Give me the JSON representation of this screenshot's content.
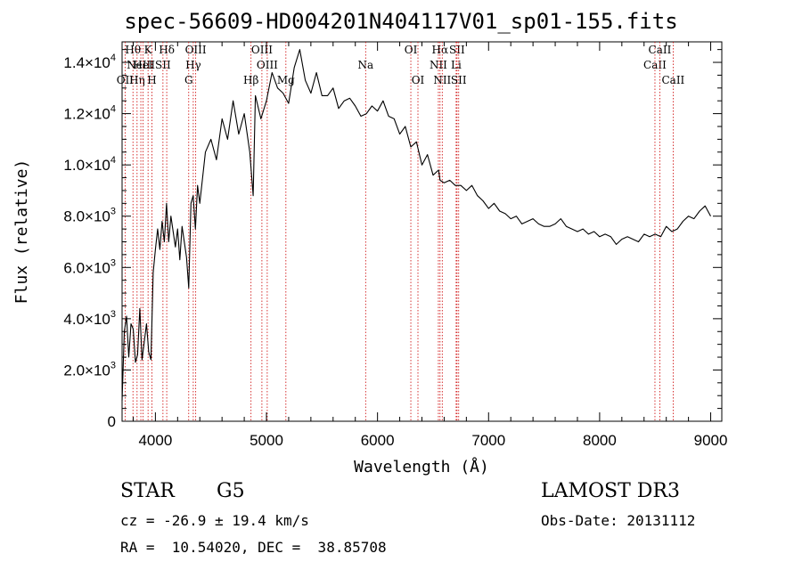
{
  "page": {
    "title": "spec-56609-HD004201N404117V01_sp01-155.fits",
    "object_class": "STAR",
    "subclass": "G5",
    "survey": "LAMOST DR3",
    "cz": "cz = -26.9 ± 19.4 km/s",
    "obs_date": "Obs-Date: 20131112",
    "radec": "RA =  10.54020, DEC =  38.85708"
  },
  "colors": {
    "line": "#000000",
    "marker": "#cc0000"
  },
  "chart_data": {
    "type": "line",
    "title": "spec-56609-HD004201N404117V01_sp01-155.fits",
    "xlabel": "Wavelength (Å)",
    "ylabel": "Flux (relative)",
    "xlim": [
      3700,
      9100
    ],
    "ylim": [
      0,
      14800
    ],
    "x_ticks": [
      4000,
      5000,
      6000,
      7000,
      8000,
      9000
    ],
    "x_tick_labels": [
      "4000",
      "5000",
      "6000",
      "7000",
      "8000",
      "9000"
    ],
    "y_ticks": [
      0,
      2000,
      4000,
      6000,
      8000,
      10000,
      12000,
      14000
    ],
    "y_tick_labels": [
      {
        "mant": "0",
        "exp": ""
      },
      {
        "mant": "2.0×10",
        "exp": "3"
      },
      {
        "mant": "4.0×10",
        "exp": "3"
      },
      {
        "mant": "6.0×10",
        "exp": "3"
      },
      {
        "mant": "8.0×10",
        "exp": "3"
      },
      {
        "mant": "1.0×10",
        "exp": "4"
      },
      {
        "mant": "1.2×10",
        "exp": "4"
      },
      {
        "mant": "1.4×10",
        "exp": "4"
      }
    ],
    "series": [
      {
        "name": "spectrum",
        "x": [
          3700,
          3720,
          3740,
          3760,
          3780,
          3800,
          3820,
          3840,
          3860,
          3880,
          3900,
          3920,
          3940,
          3960,
          3980,
          4000,
          4020,
          4040,
          4060,
          4080,
          4100,
          4120,
          4140,
          4160,
          4180,
          4200,
          4220,
          4240,
          4260,
          4280,
          4300,
          4320,
          4340,
          4360,
          4380,
          4400,
          4450,
          4500,
          4550,
          4600,
          4650,
          4700,
          4750,
          4800,
          4850,
          4880,
          4900,
          4950,
          5000,
          5050,
          5100,
          5150,
          5200,
          5250,
          5300,
          5350,
          5400,
          5450,
          5500,
          5550,
          5600,
          5650,
          5700,
          5750,
          5800,
          5850,
          5900,
          5950,
          6000,
          6050,
          6100,
          6150,
          6200,
          6250,
          6300,
          6350,
          6400,
          6450,
          6500,
          6550,
          6563,
          6600,
          6650,
          6700,
          6750,
          6800,
          6850,
          6900,
          6950,
          7000,
          7050,
          7100,
          7150,
          7200,
          7250,
          7300,
          7350,
          7400,
          7450,
          7500,
          7550,
          7600,
          7650,
          7700,
          7750,
          7800,
          7850,
          7900,
          7950,
          8000,
          8050,
          8100,
          8150,
          8200,
          8250,
          8300,
          8350,
          8400,
          8450,
          8500,
          8550,
          8600,
          8650,
          8700,
          8750,
          8800,
          8850,
          8900,
          8950,
          9000
        ],
        "y": [
          800,
          3500,
          4100,
          2500,
          3800,
          3600,
          2300,
          2600,
          4400,
          2400,
          3100,
          3800,
          2700,
          2400,
          5800,
          6700,
          7500,
          6700,
          7800,
          7000,
          8500,
          7000,
          8000,
          7400,
          6800,
          7500,
          6300,
          7600,
          7000,
          6400,
          5200,
          8500,
          8800,
          7500,
          9200,
          8500,
          10500,
          11000,
          10200,
          11800,
          11000,
          12500,
          11200,
          12000,
          10500,
          8800,
          12700,
          11800,
          12500,
          13600,
          13000,
          12800,
          12400,
          13800,
          14500,
          13300,
          12800,
          13600,
          12700,
          12700,
          13000,
          12200,
          12500,
          12600,
          12300,
          11900,
          12000,
          12300,
          12100,
          12500,
          11900,
          11800,
          11200,
          11500,
          10700,
          10900,
          10000,
          10400,
          9600,
          9800,
          9400,
          9300,
          9400,
          9200,
          9200,
          9000,
          9200,
          8800,
          8600,
          8300,
          8500,
          8200,
          8100,
          7900,
          8000,
          7700,
          7800,
          7900,
          7700,
          7600,
          7600,
          7700,
          7900,
          7600,
          7500,
          7400,
          7500,
          7300,
          7400,
          7200,
          7300,
          7200,
          6900,
          7100,
          7200,
          7100,
          7000,
          7300,
          7200,
          7300,
          7200,
          7600,
          7400,
          7500,
          7800,
          8000,
          7900,
          8200,
          8400,
          8000
        ]
      }
    ],
    "lines": [
      {
        "wave": 3727,
        "label": "OII",
        "row": 2
      },
      {
        "wave": 3798,
        "label": "Hθ",
        "row": 0
      },
      {
        "wave": 3835,
        "label": "Hη",
        "row": 2
      },
      {
        "wave": 3869,
        "label": "NeIII",
        "row": 1
      },
      {
        "wave": 3889,
        "label": "HeI",
        "row": 1
      },
      {
        "wave": 3934,
        "label": "K",
        "row": 0
      },
      {
        "wave": 3969,
        "label": "H",
        "row": 2
      },
      {
        "wave": 4068,
        "label": "SII",
        "row": 1
      },
      {
        "wave": 4102,
        "label": "Hδ",
        "row": 0
      },
      {
        "wave": 4300,
        "label": "G",
        "row": 2
      },
      {
        "wave": 4341,
        "label": "Hγ",
        "row": 1
      },
      {
        "wave": 4363,
        "label": "OIII",
        "row": 0
      },
      {
        "wave": 4861,
        "label": "Hβ",
        "row": 2
      },
      {
        "wave": 4959,
        "label": "OIII",
        "row": 0
      },
      {
        "wave": 5007,
        "label": "OIII",
        "row": 1
      },
      {
        "wave": 5175,
        "label": "Mg",
        "row": 2
      },
      {
        "wave": 5893,
        "label": "Na",
        "row": 1
      },
      {
        "wave": 6300,
        "label": "OI",
        "row": 0
      },
      {
        "wave": 6364,
        "label": "OI",
        "row": 2
      },
      {
        "wave": 6548,
        "label": "NII",
        "row": 1
      },
      {
        "wave": 6563,
        "label": "Hα",
        "row": 0
      },
      {
        "wave": 6583,
        "label": "NII",
        "row": 2
      },
      {
        "wave": 6708,
        "label": "Li",
        "row": 1
      },
      {
        "wave": 6716,
        "label": "SII",
        "row": 0
      },
      {
        "wave": 6731,
        "label": "SII",
        "row": 2
      },
      {
        "wave": 8498,
        "label": "CaII",
        "row": 1
      },
      {
        "wave": 8542,
        "label": "CaII",
        "row": 0
      },
      {
        "wave": 8662,
        "label": "CaII",
        "row": 2
      }
    ]
  }
}
